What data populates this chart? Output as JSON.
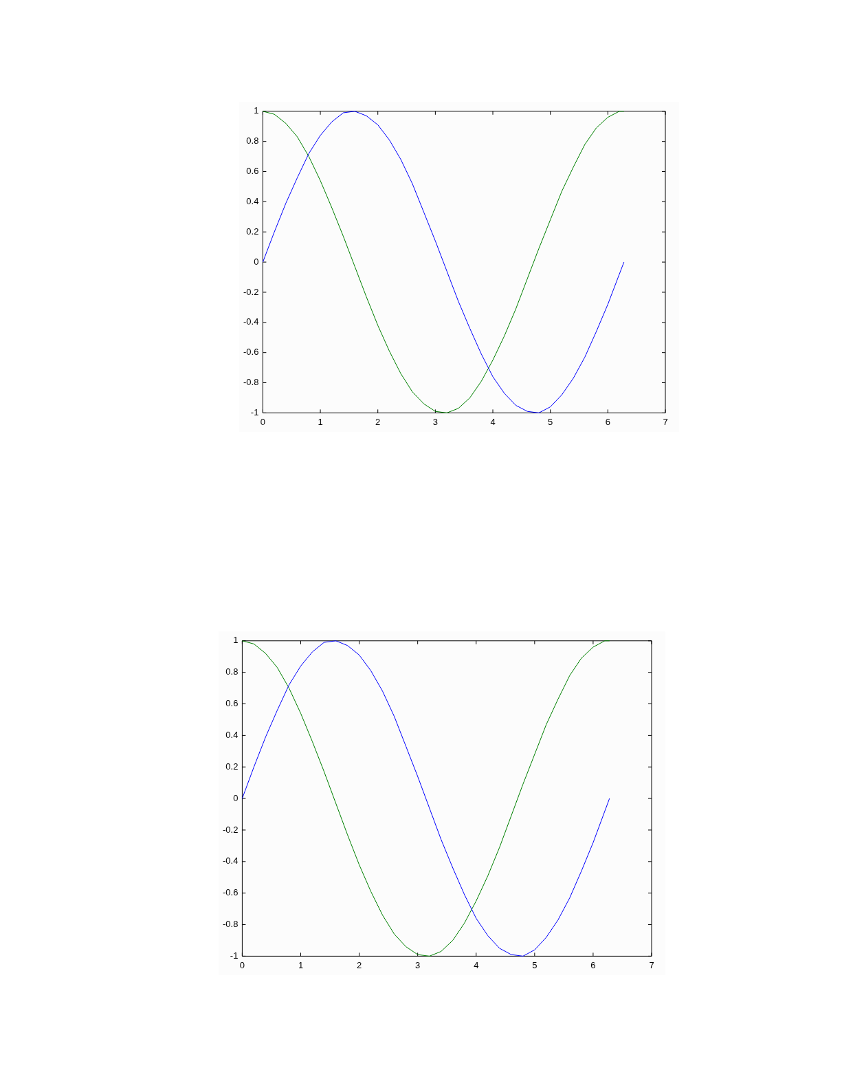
{
  "chart_data": [
    {
      "type": "line",
      "x": [
        0,
        0.2,
        0.4,
        0.6,
        0.8,
        1.0,
        1.2,
        1.4,
        1.6,
        1.8,
        2.0,
        2.2,
        2.4,
        2.6,
        2.8,
        3.0,
        3.2,
        3.4,
        3.6,
        3.8,
        4.0,
        4.2,
        4.4,
        4.6,
        4.8,
        5.0,
        5.2,
        5.4,
        5.6,
        5.8,
        6.0,
        6.2,
        6.28
      ],
      "series": [
        {
          "color": "#0000ff",
          "values": [
            0,
            0.2,
            0.39,
            0.56,
            0.72,
            0.84,
            0.93,
            0.99,
            1,
            0.97,
            0.91,
            0.81,
            0.68,
            0.52,
            0.33,
            0.14,
            -0.06,
            -0.26,
            -0.44,
            -0.61,
            -0.76,
            -0.87,
            -0.95,
            -0.99,
            -1,
            -0.96,
            -0.88,
            -0.77,
            -0.63,
            -0.46,
            -0.28,
            -0.08,
            0
          ]
        },
        {
          "color": "#008000",
          "values": [
            1,
            0.98,
            0.92,
            0.83,
            0.7,
            0.54,
            0.36,
            0.17,
            -0.03,
            -0.23,
            -0.42,
            -0.59,
            -0.74,
            -0.86,
            -0.94,
            -0.99,
            -1,
            -0.97,
            -0.9,
            -0.79,
            -0.65,
            -0.49,
            -0.31,
            -0.11,
            0.09,
            0.28,
            0.47,
            0.63,
            0.78,
            0.89,
            0.96,
            1,
            1
          ]
        }
      ],
      "xlim": [
        0,
        7
      ],
      "xticks": [
        0,
        1,
        2,
        3,
        4,
        5,
        6,
        7
      ],
      "ylim": [
        -1,
        1
      ],
      "yticks": [
        -1,
        -0.8,
        -0.6,
        -0.4,
        -0.2,
        0,
        0.2,
        0.4,
        0.6,
        0.8,
        1
      ],
      "grid": false,
      "legend": false,
      "marker": "none",
      "line_style": "solid"
    },
    {
      "type": "line",
      "x": [
        0,
        0.2,
        0.4,
        0.6,
        0.8,
        1.0,
        1.2,
        1.4,
        1.6,
        1.8,
        2.0,
        2.2,
        2.4,
        2.6,
        2.8,
        3.0,
        3.2,
        3.4,
        3.6,
        3.8,
        4.0,
        4.2,
        4.4,
        4.6,
        4.8,
        5.0,
        5.2,
        5.4,
        5.6,
        5.8,
        6.0,
        6.2,
        6.28
      ],
      "series": [
        {
          "color": "#0000ff",
          "values": [
            0,
            0.2,
            0.39,
            0.56,
            0.72,
            0.84,
            0.93,
            0.99,
            1,
            0.97,
            0.91,
            0.81,
            0.68,
            0.52,
            0.33,
            0.14,
            -0.06,
            -0.26,
            -0.44,
            -0.61,
            -0.76,
            -0.87,
            -0.95,
            -0.99,
            -1,
            -0.96,
            -0.88,
            -0.77,
            -0.63,
            -0.46,
            -0.28,
            -0.08,
            0
          ]
        },
        {
          "color": "#008000",
          "values": [
            1,
            0.98,
            0.92,
            0.83,
            0.7,
            0.54,
            0.36,
            0.17,
            -0.03,
            -0.23,
            -0.42,
            -0.59,
            -0.74,
            -0.86,
            -0.94,
            -0.99,
            -1,
            -0.97,
            -0.9,
            -0.79,
            -0.65,
            -0.49,
            -0.31,
            -0.11,
            0.09,
            0.28,
            0.47,
            0.63,
            0.78,
            0.89,
            0.96,
            1,
            1
          ]
        }
      ],
      "xlim": [
        0,
        7
      ],
      "xticks": [
        0,
        1,
        2,
        3,
        4,
        5,
        6,
        7
      ],
      "ylim": [
        -1,
        1
      ],
      "yticks": [
        -1,
        -0.8,
        -0.6,
        -0.4,
        -0.2,
        0,
        0.2,
        0.4,
        0.6,
        0.8,
        1
      ],
      "grid": false,
      "legend": false,
      "marker": "none",
      "line_style": "solid"
    }
  ]
}
